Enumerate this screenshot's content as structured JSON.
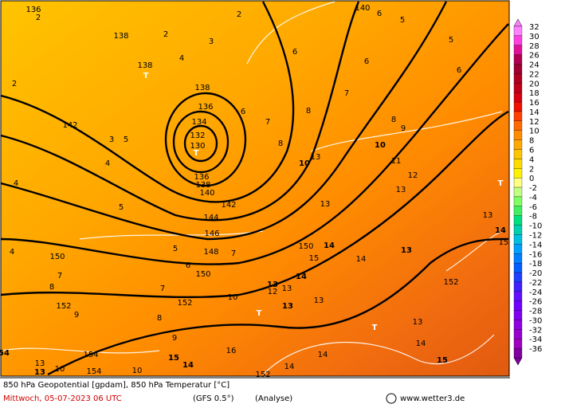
{
  "caption": {
    "title": "850 hPa Geopotential [gpdam], 850 hPa Temperatur [°C]",
    "date": "Mittwoch, 05-07-2023  06 UTC",
    "model": "(GFS 0.5°)",
    "run": "(Analyse)",
    "source": "www.wetter3.de"
  },
  "colorbar": {
    "ticks": [
      32,
      30,
      28,
      26,
      24,
      22,
      20,
      18,
      16,
      14,
      12,
      10,
      8,
      6,
      4,
      2,
      0,
      -2,
      -4,
      -6,
      -8,
      -10,
      -12,
      -14,
      -16,
      -18,
      -20,
      -22,
      -24,
      -26,
      -28,
      -30,
      -32,
      -34,
      -36
    ]
  },
  "map": {
    "labels": [
      "136",
      "2",
      "2",
      "140",
      "6",
      "5",
      "138",
      "2",
      "3",
      "5",
      "4",
      "6",
      "6",
      "6",
      "138",
      "T",
      "2",
      "138",
      "7",
      "136",
      "6",
      "8",
      "8",
      "142",
      "134",
      "7",
      "9",
      "132",
      "3",
      "5",
      "130",
      "T",
      "8",
      "10",
      "13",
      "4",
      "10",
      "11",
      "136",
      "138",
      "140",
      "12",
      "T",
      "4",
      "13",
      "5",
      "142",
      "13",
      "144",
      "13",
      "146",
      "14",
      "4",
      "5",
      "148",
      "7",
      "150",
      "14",
      "15",
      "14",
      "13",
      "15",
      "150",
      "6",
      "7",
      "150",
      "14",
      "8",
      "7",
      "13",
      "12",
      "13",
      "152",
      "10",
      "13",
      "152",
      "152",
      "T",
      "13",
      "9",
      "8",
      "T",
      "13",
      "9",
      "15",
      "16",
      "14",
      "15",
      "14",
      "154",
      "54",
      "13",
      "10",
      "13",
      "154",
      "10",
      "14",
      "152",
      "14"
    ]
  }
}
